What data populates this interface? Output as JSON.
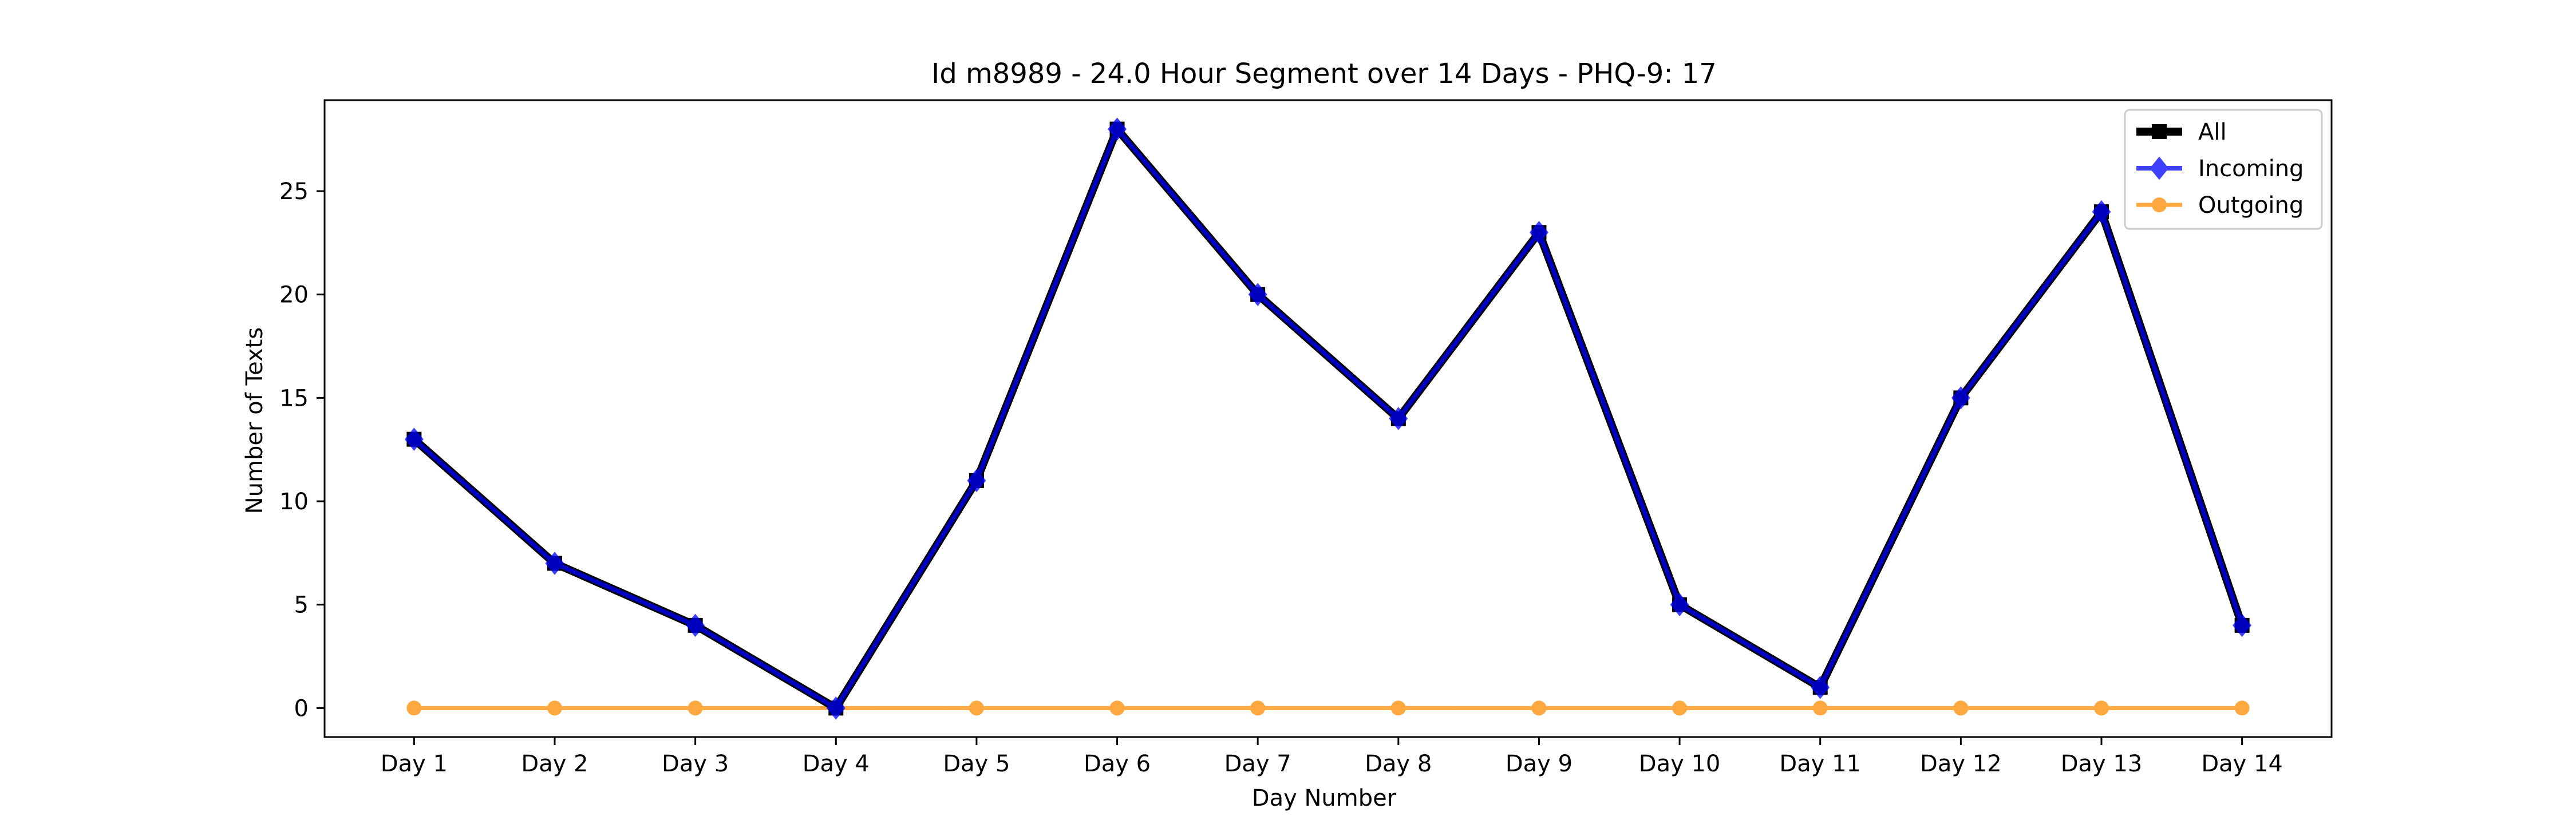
{
  "chart_data": {
    "type": "line",
    "title": "Id m8989 - 24.0 Hour Segment over 14 Days - PHQ-9: 17",
    "xlabel": "Day Number",
    "ylabel": "Number of Texts",
    "categories": [
      "Day 1",
      "Day 2",
      "Day 3",
      "Day 4",
      "Day 5",
      "Day 6",
      "Day 7",
      "Day 8",
      "Day 9",
      "Day 10",
      "Day 11",
      "Day 12",
      "Day 13",
      "Day 14"
    ],
    "ylim": [
      -1.4,
      29.4
    ],
    "yticks": [
      0,
      5,
      10,
      15,
      20,
      25
    ],
    "grid": false,
    "legend_position": "top-right",
    "series": [
      {
        "name": "All",
        "color": "#000000",
        "marker": "square",
        "values": [
          13,
          7,
          4,
          0,
          11,
          28,
          20,
          14,
          23,
          5,
          1,
          15,
          24,
          4
        ]
      },
      {
        "name": "Incoming",
        "color": "#0000ff",
        "marker": "diamond",
        "values": [
          13,
          7,
          4,
          0,
          11,
          28,
          20,
          14,
          23,
          5,
          1,
          15,
          24,
          4
        ]
      },
      {
        "name": "Outgoing",
        "color": "#ff8c00",
        "marker": "circle",
        "values": [
          0,
          0,
          0,
          0,
          0,
          0,
          0,
          0,
          0,
          0,
          0,
          0,
          0,
          0
        ]
      }
    ]
  }
}
